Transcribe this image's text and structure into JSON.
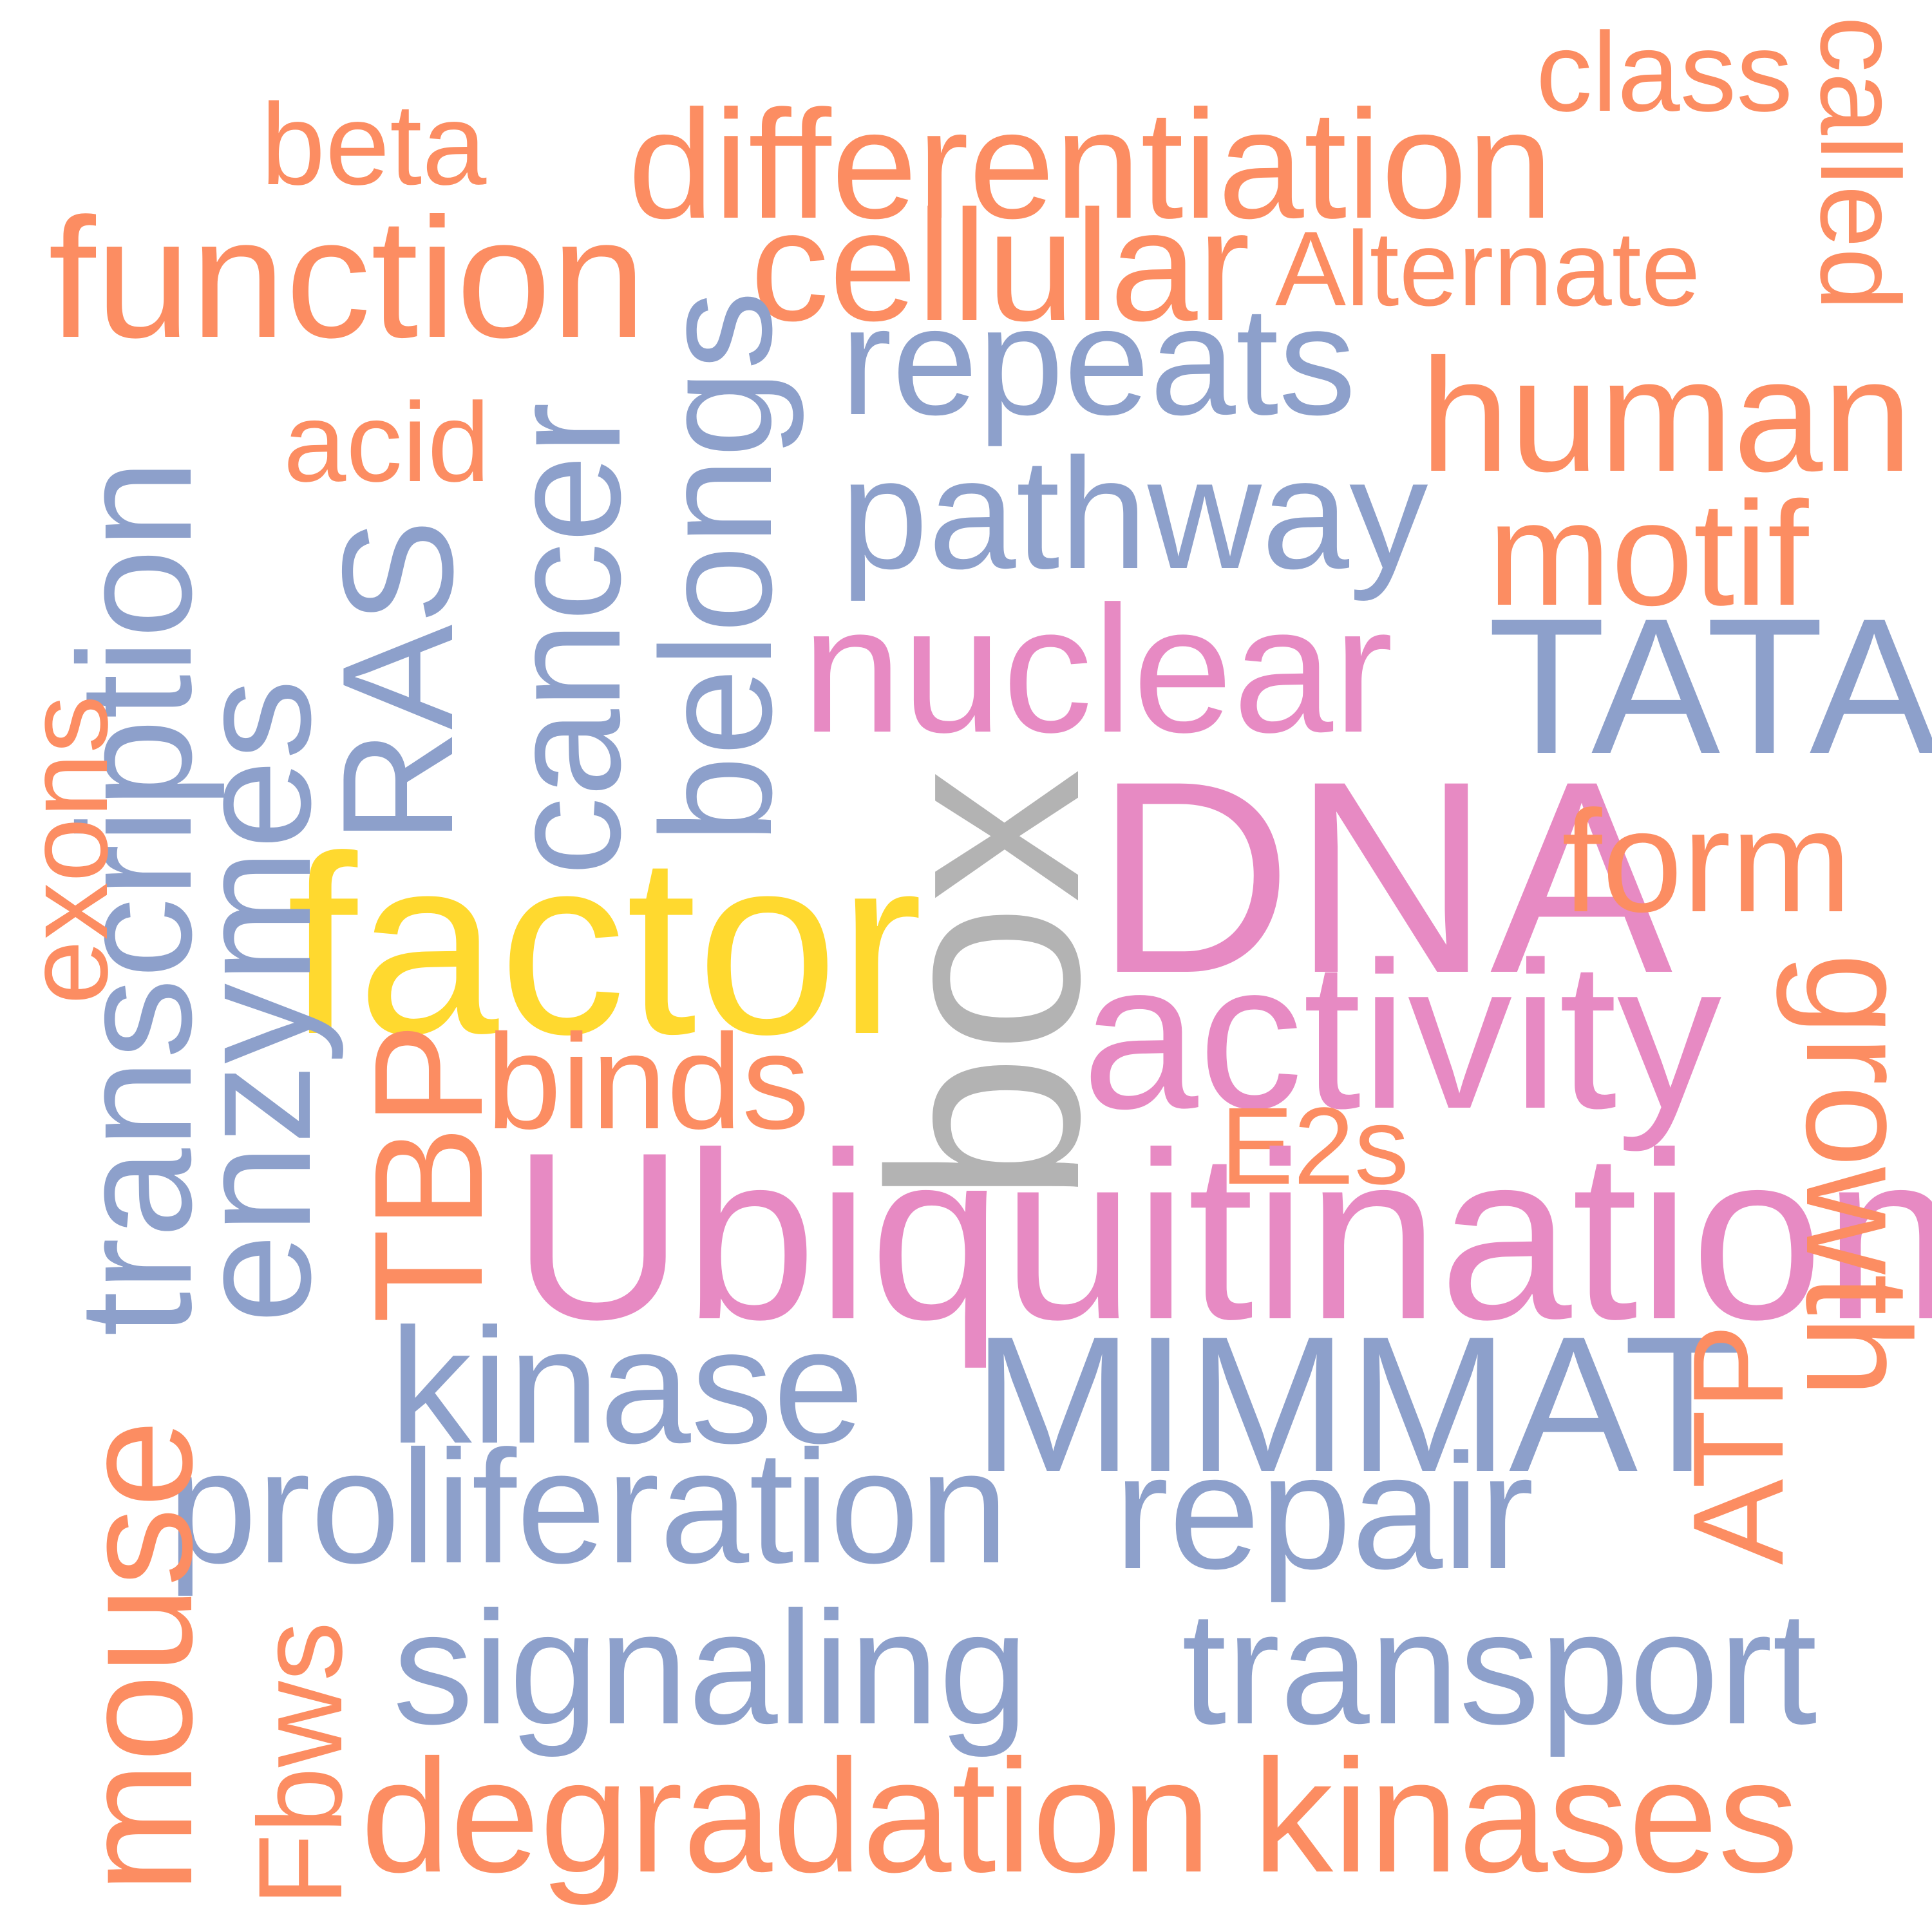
{
  "palette": {
    "orange": "#fc8d62",
    "blue": "#8da0cb",
    "pink": "#e78ac3",
    "yellow": "#ffd92f",
    "gray": "#b3b3b3",
    "background": "#ffffff"
  },
  "words": {
    "box": "box",
    "factor": "factor",
    "ubiquitination": "Ubiquitination",
    "dna": "DNA",
    "activity": "activity",
    "nuclear": "nuclear",
    "tata": "TATA",
    "mimmat": "MIMMAT",
    "kinase": "kinase",
    "proliferation": "proliferation",
    "signaling": "signaling",
    "transport": "transport",
    "degradation": "degradation",
    "kinases": "kinases",
    "repair": "repair",
    "pathway": "pathway",
    "repeats": "repeats",
    "human": "human",
    "motif": "motif",
    "form": "form",
    "cellular": "cellular",
    "differentiation": "differentiation",
    "function": "function",
    "beta": "beta",
    "class": "class",
    "alternate": "Alternate",
    "acid": "acid",
    "binds": "binds",
    "e2s": "E2s",
    "called": "called",
    "growth": "growth",
    "atp": "ATP",
    "transcription": "transcription",
    "exons": "exons",
    "enzymes": "enzymes",
    "ras": "RAS",
    "cancer": "cancer",
    "belongs": "belongs",
    "tbp": "TBP",
    "mouse": "mouse",
    "fbws": "Fbws"
  }
}
